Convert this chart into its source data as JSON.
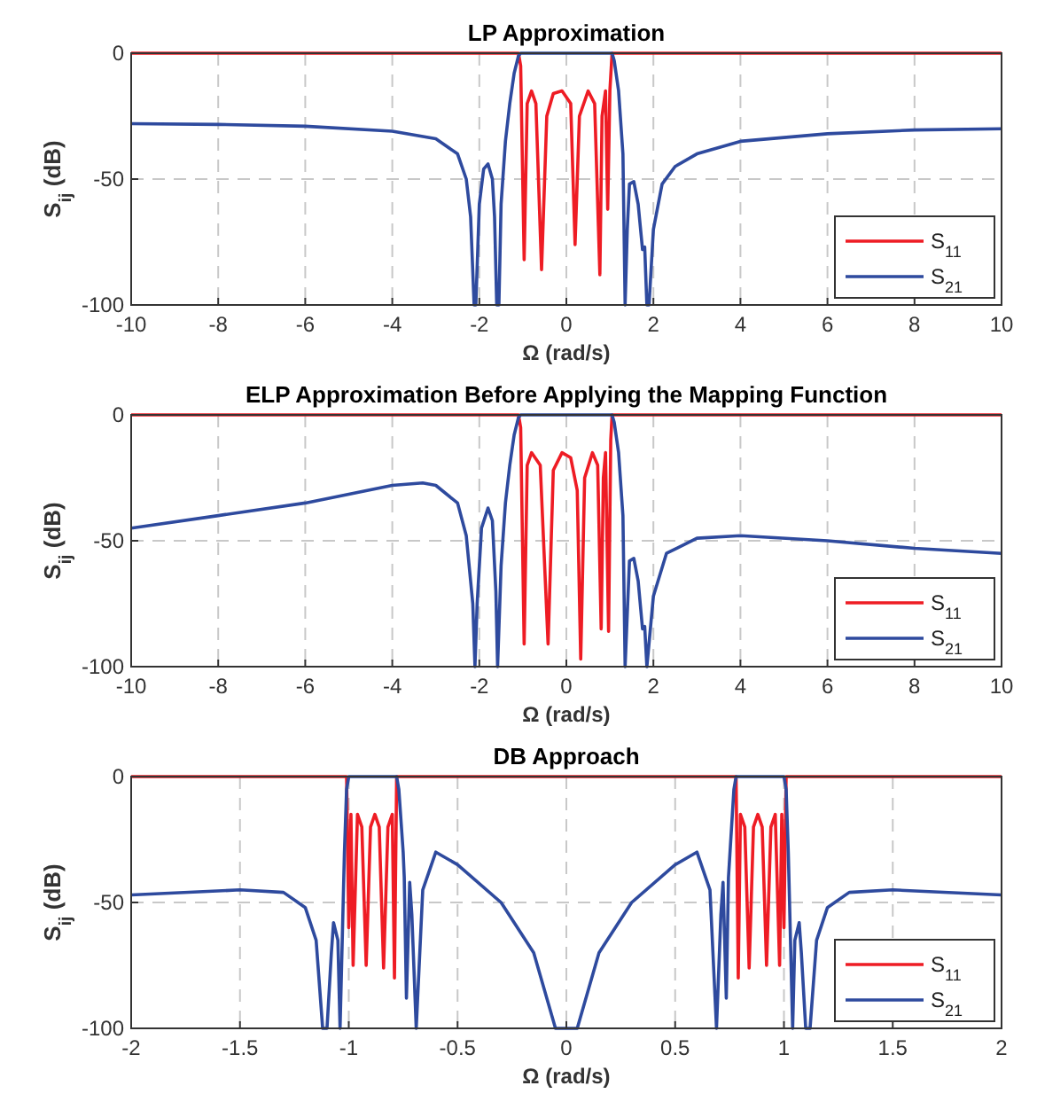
{
  "chart_data": [
    {
      "type": "line",
      "title": "LP Approximation",
      "xlabel": "Ω (rad/s)",
      "ylabel": "S$_{ij}$ (dB)",
      "xlim": [
        -10,
        10
      ],
      "xticks": [
        -10,
        -8,
        -6,
        -4,
        -2,
        0,
        2,
        4,
        6,
        8,
        10
      ],
      "ylim": [
        -100,
        0
      ],
      "yticks": [
        -100,
        -50,
        0
      ],
      "grid": true,
      "legend": "bottom right",
      "line_style": "solid",
      "series": [
        {
          "name": "S$_{11}$",
          "color": "#ee1c24",
          "x": [
            -10,
            -1.1,
            -1.05,
            -0.97,
            -0.9,
            -0.8,
            -0.7,
            -0.57,
            -0.45,
            -0.3,
            -0.1,
            0.1,
            0.2,
            0.3,
            0.5,
            0.65,
            0.77,
            0.82,
            0.9,
            0.95,
            1.0,
            1.05,
            10
          ],
          "values": [
            0,
            0,
            -5,
            -82,
            -20,
            -15,
            -20,
            -86,
            -25,
            -16,
            -15,
            -20,
            -76,
            -25,
            -15,
            -20,
            -88,
            -25,
            -15,
            -62,
            -15,
            0,
            0
          ]
        },
        {
          "name": "S$_{21}$",
          "color": "#2e4a9e",
          "x": [
            -10,
            -8,
            -6,
            -4,
            -3,
            -2.5,
            -2.3,
            -2.2,
            -2.12,
            -2.08,
            -2.0,
            -1.9,
            -1.8,
            -1.7,
            -1.65,
            -1.6,
            -1.55,
            -1.5,
            -1.4,
            -1.3,
            -1.2,
            -1.1,
            -1.05,
            1.05,
            1.1,
            1.2,
            1.3,
            1.35,
            1.4,
            1.45,
            1.55,
            1.65,
            1.75,
            1.8,
            1.85,
            1.9,
            2.0,
            2.2,
            2.5,
            3,
            4,
            6,
            8,
            10
          ],
          "values": [
            -28,
            -28.3,
            -29,
            -31,
            -34,
            -40,
            -50,
            -65,
            -100,
            -100,
            -60,
            -46,
            -44,
            -50,
            -65,
            -100,
            -100,
            -60,
            -35,
            -20,
            -8,
            -1,
            0,
            0,
            -3,
            -15,
            -40,
            -100,
            -70,
            -52,
            -51,
            -60,
            -78,
            -77,
            -100,
            -100,
            -70,
            -52,
            -45,
            -40,
            -35,
            -32,
            -30.5,
            -30
          ]
        }
      ]
    },
    {
      "type": "line",
      "title": "ELP Approximation Before Applying the Mapping Function",
      "xlabel": "Ω (rad/s)",
      "ylabel": "S$_{ij}$ (dB)",
      "xlim": [
        -10,
        10
      ],
      "xticks": [
        -10,
        -8,
        -6,
        -4,
        -2,
        0,
        2,
        4,
        6,
        8,
        10
      ],
      "ylim": [
        -100,
        0
      ],
      "yticks": [
        -100,
        -50,
        0
      ],
      "grid": true,
      "legend": "bottom right",
      "line_style": "solid",
      "series": [
        {
          "name": "S$_{11}$",
          "color": "#ee1c24",
          "x": [
            -10,
            -1.1,
            -1.05,
            -0.97,
            -0.9,
            -0.8,
            -0.6,
            -0.42,
            -0.3,
            -0.1,
            0.1,
            0.25,
            0.33,
            0.42,
            0.6,
            0.72,
            0.8,
            0.85,
            0.9,
            0.97,
            1.02,
            1.05,
            10
          ],
          "values": [
            0,
            0,
            -5,
            -91,
            -20,
            -15,
            -20,
            -91,
            -22,
            -15,
            -17,
            -30,
            -97,
            -25,
            -15,
            -20,
            -85,
            -25,
            -15,
            -86,
            -10,
            0,
            0
          ]
        },
        {
          "name": "S$_{21}$",
          "color": "#2e4a9e",
          "x": [
            -10,
            -8,
            -6,
            -4,
            -3.3,
            -3,
            -2.5,
            -2.3,
            -2.15,
            -2.1,
            -2.05,
            -1.95,
            -1.8,
            -1.7,
            -1.62,
            -1.58,
            -1.5,
            -1.4,
            -1.3,
            -1.2,
            -1.1,
            -1.05,
            1.05,
            1.1,
            1.2,
            1.3,
            1.35,
            1.45,
            1.55,
            1.65,
            1.75,
            1.8,
            1.85,
            2.0,
            2.3,
            3,
            4,
            6,
            8,
            10
          ],
          "values": [
            -45,
            -40,
            -35,
            -28,
            -27,
            -28,
            -35,
            -48,
            -75,
            -100,
            -75,
            -45,
            -37,
            -42,
            -70,
            -100,
            -60,
            -35,
            -20,
            -8,
            -1,
            0,
            0,
            -3,
            -15,
            -40,
            -100,
            -58,
            -57,
            -66,
            -85,
            -84,
            -100,
            -72,
            -55,
            -49,
            -48,
            -50,
            -53,
            -55
          ]
        }
      ]
    },
    {
      "type": "line",
      "title": "DB Approach",
      "xlabel": "Ω (rad/s)",
      "ylabel": "S$_{ij}$ (dB)",
      "xlim": [
        -2,
        2
      ],
      "xticks": [
        -2,
        -1.5,
        -1,
        -0.5,
        0,
        0.5,
        1,
        1.5,
        2
      ],
      "ylim": [
        -100,
        0
      ],
      "yticks": [
        -100,
        -50,
        0
      ],
      "grid": true,
      "legend": "bottom right",
      "line_style": "solid",
      "series": [
        {
          "name": "S$_{11}$",
          "color": "#ee1c24",
          "x": [
            -2,
            -1.01,
            -1.0,
            -0.99,
            -0.98,
            -0.96,
            -0.94,
            -0.92,
            -0.9,
            -0.88,
            -0.86,
            -0.84,
            -0.82,
            -0.8,
            -0.79,
            -0.78,
            0.78,
            0.79,
            0.8,
            0.82,
            0.84,
            0.86,
            0.88,
            0.9,
            0.92,
            0.94,
            0.96,
            0.98,
            0.99,
            1.0,
            1.01,
            2
          ],
          "values": [
            0,
            0,
            -60,
            -15,
            -75,
            -15,
            -20,
            -75,
            -20,
            -15,
            -20,
            -76,
            -20,
            -15,
            -80,
            0,
            0,
            -80,
            -15,
            -20,
            -76,
            -20,
            -15,
            -20,
            -75,
            -20,
            -15,
            -75,
            -15,
            -60,
            0,
            0
          ]
        },
        {
          "name": "S$_{21}$",
          "color": "#2e4a9e",
          "x": [
            -2,
            -1.5,
            -1.3,
            -1.2,
            -1.15,
            -1.12,
            -1.1,
            -1.08,
            -1.07,
            -1.05,
            -1.04,
            -1.02,
            -1.01,
            -1.0,
            -0.78,
            -0.77,
            -0.75,
            -0.745,
            -0.735,
            -0.72,
            -0.71,
            -0.69,
            -0.66,
            -0.6,
            -0.5,
            -0.3,
            -0.15,
            -0.05,
            0.05,
            0.15,
            0.3,
            0.5,
            0.6,
            0.66,
            0.69,
            0.71,
            0.72,
            0.735,
            0.745,
            0.77,
            0.78,
            1.0,
            1.01,
            1.02,
            1.04,
            1.05,
            1.07,
            1.08,
            1.1,
            1.12,
            1.15,
            1.2,
            1.3,
            1.5,
            2
          ],
          "values": [
            -47,
            -45,
            -46,
            -52,
            -65,
            -100,
            -100,
            -70,
            -58,
            -65,
            -100,
            -30,
            -5,
            0,
            0,
            -5,
            -30,
            -40,
            -88,
            -42,
            -55,
            -100,
            -45,
            -30,
            -35,
            -50,
            -70,
            -100,
            -100,
            -70,
            -50,
            -35,
            -30,
            -45,
            -100,
            -55,
            -42,
            -88,
            -40,
            -5,
            0,
            0,
            -5,
            -30,
            -100,
            -65,
            -58,
            -70,
            -100,
            -100,
            -65,
            -52,
            -46,
            -45,
            -47
          ]
        }
      ]
    }
  ]
}
